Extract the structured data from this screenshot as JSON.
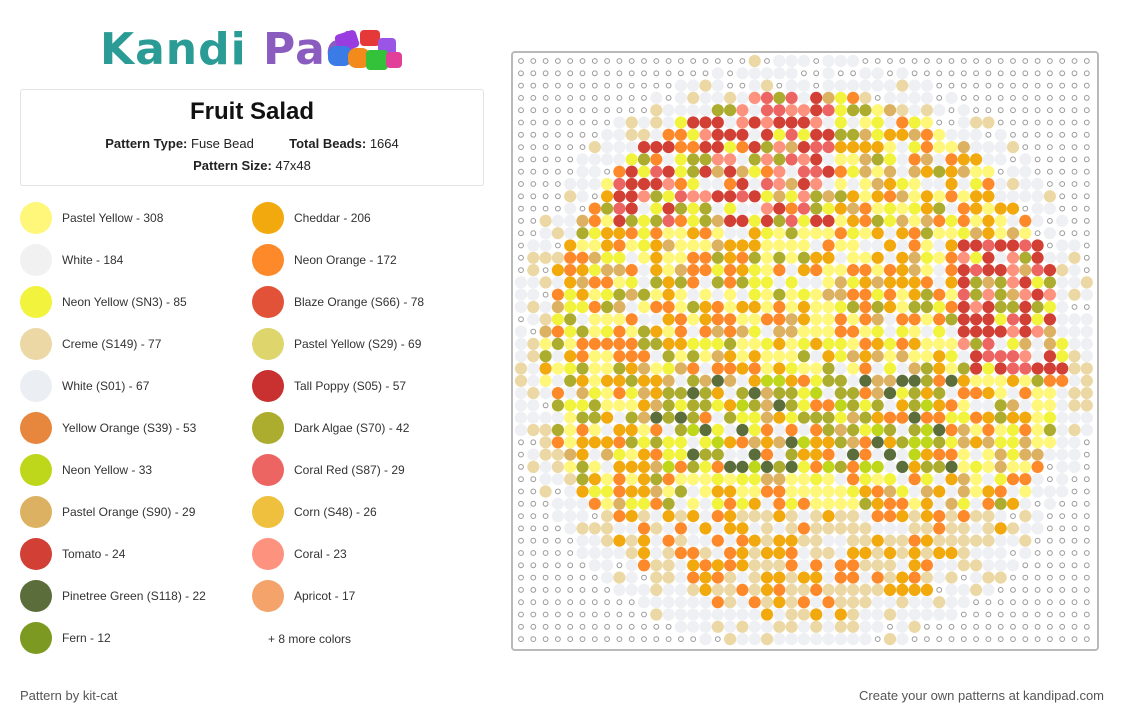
{
  "brand": {
    "part1": "Kandi",
    "part2": "Pad"
  },
  "pattern": {
    "title": "Fruit Salad",
    "type_label": "Pattern Type:",
    "type_value": "Fuse Bead",
    "beads_label": "Total Beads:",
    "beads_value": "1664",
    "size_label": "Pattern Size:",
    "size_value": "47x48"
  },
  "legend": [
    {
      "label": "Pastel Yellow - 308",
      "color": "#fef77a"
    },
    {
      "label": "White - 184",
      "color": "#f1f1f1"
    },
    {
      "label": "Neon Yellow (SN3) - 85",
      "color": "#f1f33c"
    },
    {
      "label": "Creme (S149) - 77",
      "color": "#ecd8a4"
    },
    {
      "label": "White (S01) - 67",
      "color": "#ebeef2"
    },
    {
      "label": "Yellow Orange (S39) - 53",
      "color": "#e6873d"
    },
    {
      "label": "Neon Yellow - 33",
      "color": "#bfd71a"
    },
    {
      "label": "Pastel Orange (S90) - 29",
      "color": "#dcb262"
    },
    {
      "label": "Tomato - 24",
      "color": "#d23f35"
    },
    {
      "label": "Pinetree Green (S118) - 22",
      "color": "#5b6d3a"
    },
    {
      "label": "Fern - 12",
      "color": "#7c9a21"
    },
    {
      "label": "Cheddar - 206",
      "color": "#f2a90d"
    },
    {
      "label": "Neon Orange - 172",
      "color": "#fd892a"
    },
    {
      "label": "Blaze Orange (S66) - 78",
      "color": "#e25238"
    },
    {
      "label": "Pastel Yellow (S29) - 69",
      "color": "#ded56c"
    },
    {
      "label": "Tall Poppy (S05) - 57",
      "color": "#c93131"
    },
    {
      "label": "Dark Algae (S70) - 42",
      "color": "#acad2f"
    },
    {
      "label": "Coral Red (S87) - 29",
      "color": "#ec6563"
    },
    {
      "label": "Corn (S48) - 26",
      "color": "#eec03e"
    },
    {
      "label": "Coral - 23",
      "color": "#fd937f"
    },
    {
      "label": "Apricot - 17",
      "color": "#f4a46a"
    }
  ],
  "more_colors": "+ 8 more colors",
  "footer": {
    "credit": "Pattern by kit-cat",
    "cta": "Create your own patterns at kandipad.com"
  }
}
